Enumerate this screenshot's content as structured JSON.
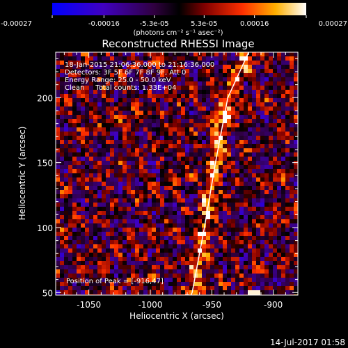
{
  "colorbar": {
    "tick_labels": [
      "-0.00027",
      "-0.00016",
      "-5.3e-05",
      "5.3e-05",
      "0.00016",
      "0.00027"
    ],
    "range": [
      -0.00027,
      0.00027
    ],
    "unit_label": "(photons cm⁻² s⁻¹ asec⁻²)"
  },
  "image": {
    "title": "Reconstructed RHESSI Image",
    "info_lines": [
      "18-Jan-2015 21:06:36.000 to 21:16:36.000",
      "Detectors: 3F 5F 6F 7F 8F 9F, Att 0",
      "Energy Range: 25.0 - 50.0 keV",
      "Clean     Total counts: 1.33E+04"
    ],
    "peak_label": "Position of Peak = [-916,47]",
    "limb_color": "#ffffff"
  },
  "chart_data": {
    "type": "heatmap",
    "title": "Reconstructed RHESSI Image",
    "xlabel": "Heliocentric X (arcsec)",
    "ylabel": "Heliocentric Y (arcsec)",
    "xlim": [
      -1077,
      -880
    ],
    "ylim": [
      48,
      235
    ],
    "x_ticks": [
      -1050,
      -1000,
      -950,
      -900
    ],
    "y_ticks": [
      50,
      100,
      150,
      200
    ],
    "limb_curve": [
      [
        -920,
        235
      ],
      [
        -937,
        200
      ],
      [
        -947,
        150
      ],
      [
        -956,
        100
      ],
      [
        -966,
        50
      ],
      [
        -967,
        48
      ]
    ],
    "peak": [
      -916,
      47
    ]
  },
  "footer": {
    "timestamp": "14-Jul-2017 01:58"
  }
}
